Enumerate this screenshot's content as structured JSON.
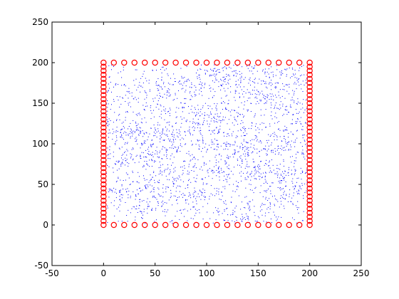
{
  "chart_data": {
    "type": "scatter",
    "title": "",
    "xlabel": "",
    "ylabel": "",
    "xlim": [
      -50,
      250
    ],
    "ylim": [
      -50,
      250
    ],
    "xticks": [
      -50,
      0,
      50,
      100,
      150,
      200,
      250
    ],
    "yticks": [
      -50,
      0,
      50,
      100,
      150,
      200,
      250
    ],
    "xtick_labels": [
      "-50",
      "0",
      "50",
      "100",
      "150",
      "200",
      "250"
    ],
    "ytick_labels": [
      "-50",
      "0",
      "50",
      "100",
      "150",
      "200",
      "250"
    ],
    "grid": false,
    "legend": "none",
    "series": [
      {
        "marker": "circle",
        "color": "#ff0000",
        "x": [
          0,
          10,
          20,
          30,
          40,
          50,
          60,
          70,
          80,
          90,
          100,
          110,
          120,
          130,
          140,
          150,
          160,
          170,
          180,
          190,
          200,
          0,
          10,
          20,
          30,
          40,
          50,
          60,
          70,
          80,
          90,
          100,
          110,
          120,
          130,
          140,
          150,
          160,
          170,
          180,
          190,
          200,
          0,
          0,
          0,
          0,
          0,
          0,
          0,
          0,
          0,
          0,
          0,
          0,
          0,
          0,
          0,
          0,
          0,
          0,
          0,
          0,
          0,
          0,
          0,
          0,
          0,
          0,
          0,
          0,
          0,
          0,
          0,
          0,
          0,
          0,
          0,
          0,
          0,
          0,
          0,
          200,
          200,
          200,
          200,
          200,
          200,
          200,
          200,
          200,
          200,
          200,
          200,
          200,
          200,
          200,
          200,
          200,
          200,
          200,
          200,
          200,
          200,
          200,
          200,
          200,
          200,
          200,
          200,
          200,
          200,
          200,
          200,
          200,
          200,
          200,
          200,
          200,
          200,
          200
        ],
        "y": [
          0,
          0,
          0,
          0,
          0,
          0,
          0,
          0,
          0,
          0,
          0,
          0,
          0,
          0,
          0,
          0,
          0,
          0,
          0,
          0,
          0,
          200,
          200,
          200,
          200,
          200,
          200,
          200,
          200,
          200,
          200,
          200,
          200,
          200,
          200,
          200,
          200,
          200,
          200,
          200,
          200,
          200,
          5,
          10,
          15,
          20,
          25,
          30,
          35,
          40,
          45,
          50,
          55,
          60,
          65,
          70,
          75,
          80,
          85,
          90,
          95,
          100,
          105,
          110,
          115,
          120,
          125,
          130,
          135,
          140,
          145,
          150,
          155,
          160,
          165,
          170,
          175,
          180,
          185,
          190,
          195,
          5,
          10,
          15,
          20,
          25,
          30,
          35,
          40,
          45,
          50,
          55,
          60,
          65,
          70,
          75,
          80,
          85,
          90,
          95,
          100,
          105,
          110,
          115,
          120,
          125,
          130,
          135,
          140,
          145,
          150,
          155,
          160,
          165,
          170,
          175,
          180,
          185,
          190,
          195
        ]
      },
      {
        "marker": "dot",
        "color": "#0000ff",
        "count": 2600,
        "x_range": [
          0,
          200
        ],
        "y_range": [
          0,
          200
        ],
        "clusters": [
          [
            40,
            90
          ],
          [
            45,
            110
          ],
          [
            30,
            80
          ],
          [
            60,
            150
          ],
          [
            70,
            170
          ],
          [
            90,
            100
          ],
          [
            100,
            180
          ],
          [
            110,
            140
          ],
          [
            120,
            120
          ],
          [
            126,
            93
          ],
          [
            130,
            60
          ],
          [
            140,
            15
          ],
          [
            150,
            100
          ],
          [
            160,
            70
          ],
          [
            170,
            150
          ],
          [
            175,
            40
          ],
          [
            180,
            180
          ],
          [
            185,
            120
          ],
          [
            190,
            60
          ],
          [
            80,
            40
          ],
          [
            55,
            25
          ],
          [
            20,
            165
          ],
          [
            25,
            45
          ],
          [
            105,
            75
          ],
          [
            145,
            170
          ],
          [
            135,
            190
          ],
          [
            75,
            120
          ],
          [
            65,
            60
          ],
          [
            190,
            95
          ],
          [
            12,
            120
          ]
        ]
      }
    ]
  }
}
